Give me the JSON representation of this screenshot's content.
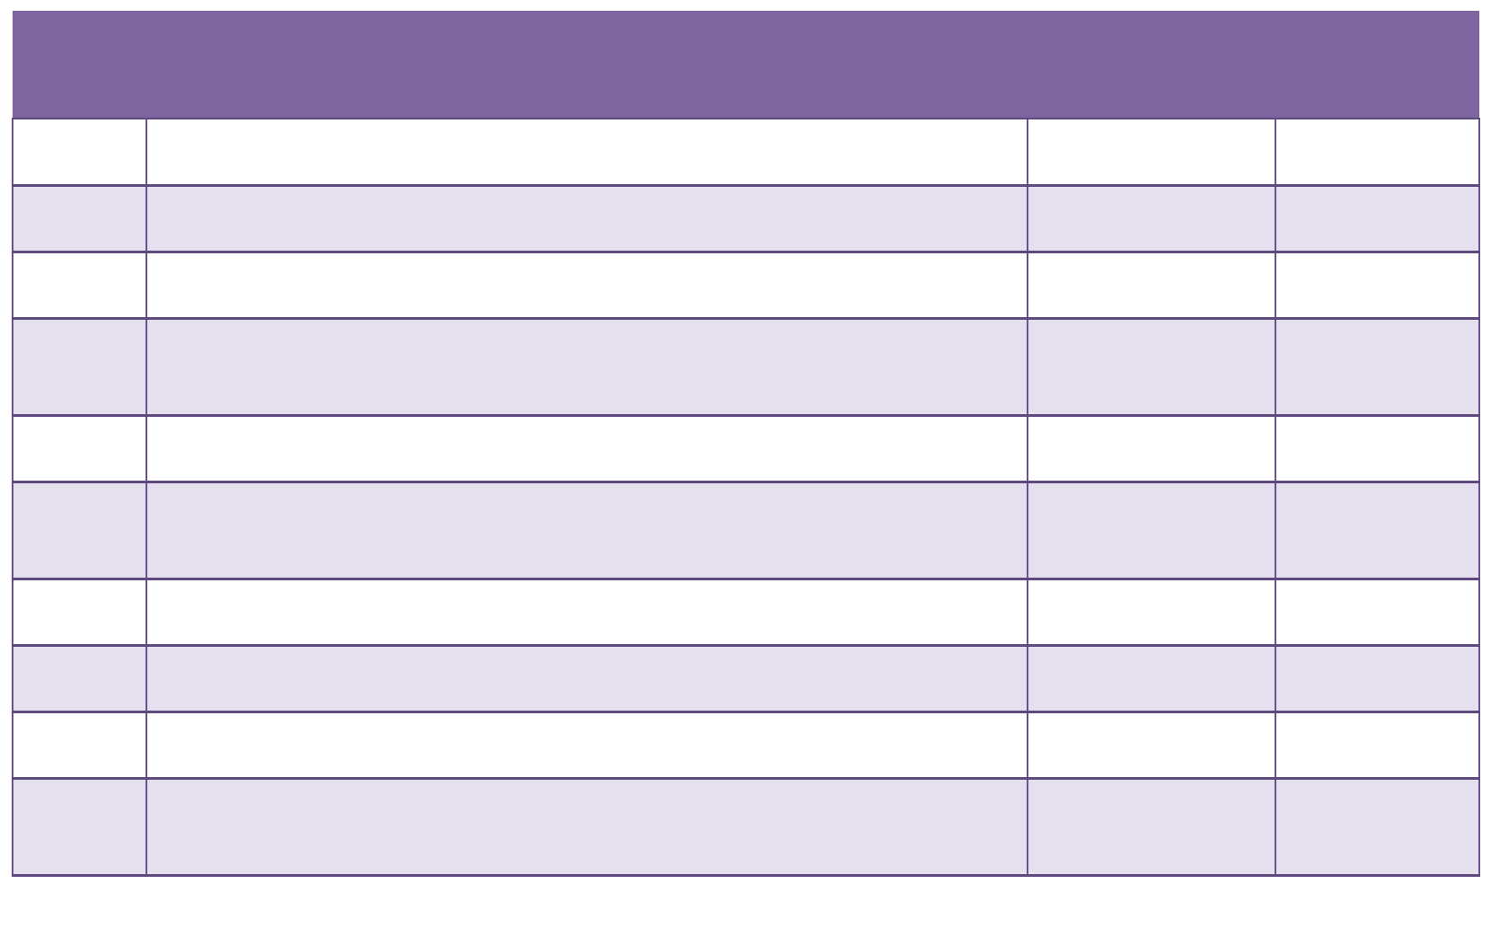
{
  "colors": {
    "header_bg": "#7e65a0",
    "border": "#6a5190",
    "row_alt_bg": "#e5e0ed",
    "row_bg": "#ffffff"
  },
  "table": {
    "header": [
      ""
    ],
    "rows": [
      {
        "cells": [
          "",
          "",
          "",
          ""
        ],
        "tall": false
      },
      {
        "cells": [
          "",
          "",
          "",
          ""
        ],
        "tall": false
      },
      {
        "cells": [
          "",
          "",
          "",
          ""
        ],
        "tall": false
      },
      {
        "cells": [
          "",
          "",
          "",
          ""
        ],
        "tall": true
      },
      {
        "cells": [
          "",
          "",
          "",
          ""
        ],
        "tall": false
      },
      {
        "cells": [
          "",
          "",
          "",
          ""
        ],
        "tall": true
      },
      {
        "cells": [
          "",
          "",
          "",
          ""
        ],
        "tall": false
      },
      {
        "cells": [
          "",
          "",
          "",
          ""
        ],
        "tall": false
      },
      {
        "cells": [
          "",
          "",
          "",
          ""
        ],
        "tall": false
      },
      {
        "cells": [
          "",
          "",
          "",
          ""
        ],
        "tall": true
      }
    ]
  }
}
